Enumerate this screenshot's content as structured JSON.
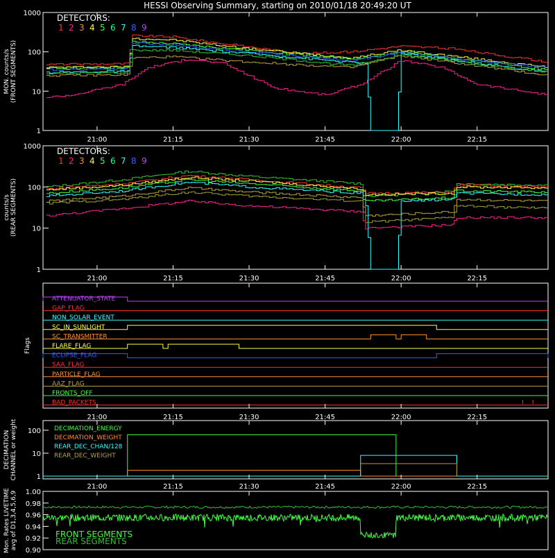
{
  "title": "HESSI Observing Summary, starting on 2010/01/18 20:49:20 UT",
  "colors": {
    "d1": "#ff3030",
    "d2": "#ff2090",
    "d3": "#ff9030",
    "d4": "#ffff40",
    "d5": "#40ff40",
    "d6": "#20ff90",
    "d7": "#30ffff",
    "d8": "#3060ff",
    "d9": "#c040ff",
    "olive": "#b8a040",
    "olive2": "#a0a030",
    "green2": "#30c030"
  },
  "chart_data": [
    {
      "type": "line",
      "panel": "front",
      "ylabel_lines": [
        "MON. counts/s",
        "(FRONT SEGMENTS)"
      ],
      "legend_title": "DETECTORS:",
      "legend_digits": [
        "1",
        "2",
        "3",
        "4",
        "5",
        "6",
        "7",
        "8",
        "9"
      ],
      "yscale": "log",
      "ylim": [
        1,
        1000
      ],
      "yticks": [
        "1",
        "10",
        "100",
        "1000"
      ],
      "xlim": [
        "20:49:20",
        "22:29:00"
      ],
      "xticks": [
        "21:00",
        "21:15",
        "21:30",
        "21:45",
        "22:00",
        "22:15"
      ],
      "series": [
        {
          "color_key": "d1",
          "points": [
            [
              "20:50",
              48
            ],
            [
              "21:06",
              50
            ],
            [
              "21:07",
              260
            ],
            [
              "21:15",
              240
            ],
            [
              "21:25",
              160
            ],
            [
              "21:40",
              90
            ],
            [
              "21:50",
              100
            ],
            [
              "22:00",
              140
            ],
            [
              "22:10",
              120
            ],
            [
              "22:29",
              55
            ]
          ]
        },
        {
          "color_key": "d4",
          "points": [
            [
              "20:50",
              40
            ],
            [
              "21:06",
              42
            ],
            [
              "21:07",
              220
            ],
            [
              "21:15",
              200
            ],
            [
              "21:30",
              120
            ],
            [
              "21:50",
              70
            ],
            [
              "22:00",
              110
            ],
            [
              "22:29",
              40
            ]
          ]
        },
        {
          "color_key": "d5",
          "points": [
            [
              "20:50",
              38
            ],
            [
              "21:06",
              40
            ],
            [
              "21:07",
              180
            ],
            [
              "21:15",
              160
            ],
            [
              "21:30",
              110
            ],
            [
              "21:50",
              65
            ],
            [
              "22:00",
              100
            ],
            [
              "22:29",
              35
            ]
          ]
        },
        {
          "color_key": "d8",
          "points": [
            [
              "20:50",
              35
            ],
            [
              "21:06",
              38
            ],
            [
              "21:07",
              170
            ],
            [
              "21:15",
              150
            ],
            [
              "21:30",
              100
            ],
            [
              "21:50",
              60
            ],
            [
              "22:00",
              95
            ],
            [
              "22:29",
              40
            ]
          ]
        },
        {
          "color_key": "d7",
          "points": [
            [
              "20:50",
              30
            ],
            [
              "21:06",
              32
            ],
            [
              "21:07",
              140
            ],
            [
              "21:15",
              130
            ],
            [
              "21:30",
              90
            ],
            [
              "21:53",
              50
            ],
            [
              "21:54",
              1
            ],
            [
              "21:59",
              1
            ],
            [
              "22:00",
              90
            ],
            [
              "22:29",
              30
            ]
          ]
        },
        {
          "color_key": "olive",
          "points": [
            [
              "20:50",
              25
            ],
            [
              "21:06",
              26
            ],
            [
              "21:07",
              70
            ],
            [
              "21:15",
              75
            ],
            [
              "21:30",
              55
            ],
            [
              "21:50",
              40
            ],
            [
              "22:00",
              80
            ],
            [
              "22:29",
              25
            ]
          ]
        },
        {
          "color_key": "green2",
          "points": [
            [
              "20:50",
              28
            ],
            [
              "21:06",
              30
            ],
            [
              "21:07",
              110
            ],
            [
              "21:15",
              110
            ],
            [
              "21:30",
              80
            ],
            [
              "21:50",
              45
            ],
            [
              "22:00",
              85
            ],
            [
              "22:29",
              30
            ]
          ]
        },
        {
          "color_key": "d2",
          "points": [
            [
              "20:50",
              7
            ],
            [
              "20:55",
              8
            ],
            [
              "21:05",
              15
            ],
            [
              "21:10",
              40
            ],
            [
              "21:18",
              65
            ],
            [
              "21:25",
              50
            ],
            [
              "21:35",
              12
            ],
            [
              "21:45",
              8
            ],
            [
              "21:52",
              15
            ],
            [
              "22:00",
              60
            ],
            [
              "22:08",
              40
            ],
            [
              "22:15",
              15
            ],
            [
              "22:29",
              8
            ]
          ]
        }
      ]
    },
    {
      "type": "line",
      "panel": "rear",
      "ylabel_lines": [
        "counts/s",
        "(REAR SEGMENTS)"
      ],
      "legend_title": "DETECTORS:",
      "legend_digits": [
        "1",
        "2",
        "3",
        "4",
        "5",
        "6",
        "7",
        "8",
        "9"
      ],
      "yscale": "log",
      "ylim": [
        1,
        1000
      ],
      "yticks": [
        "1",
        "10",
        "100",
        "1000"
      ],
      "xlim": [
        "20:49:20",
        "22:29:00"
      ],
      "xticks": [
        "21:00",
        "21:15",
        "21:30",
        "21:45",
        "22:00",
        "22:15"
      ],
      "series": [
        {
          "color_key": "green2",
          "points": [
            [
              "20:50",
              100
            ],
            [
              "21:05",
              150
            ],
            [
              "21:18",
              240
            ],
            [
              "21:30",
              180
            ],
            [
              "21:52",
              120
            ],
            [
              "21:53",
              60
            ],
            [
              "22:00",
              65
            ],
            [
              "22:10",
              80
            ],
            [
              "22:11",
              120
            ],
            [
              "22:29",
              110
            ]
          ]
        },
        {
          "color_key": "d1",
          "points": [
            [
              "20:50",
              90
            ],
            [
              "21:05",
              120
            ],
            [
              "21:18",
              190
            ],
            [
              "21:30",
              150
            ],
            [
              "21:52",
              95
            ],
            [
              "21:53",
              70
            ],
            [
              "22:10",
              75
            ],
            [
              "22:11",
              110
            ],
            [
              "22:29",
              100
            ]
          ]
        },
        {
          "color_key": "d4",
          "points": [
            [
              "20:50",
              85
            ],
            [
              "21:05",
              110
            ],
            [
              "21:18",
              170
            ],
            [
              "21:30",
              140
            ],
            [
              "21:52",
              90
            ],
            [
              "21:53",
              65
            ],
            [
              "22:10",
              70
            ],
            [
              "22:11",
              100
            ],
            [
              "22:29",
              95
            ]
          ]
        },
        {
          "color_key": "d5",
          "points": [
            [
              "20:50",
              70
            ],
            [
              "21:05",
              95
            ],
            [
              "21:18",
              150
            ],
            [
              "21:30",
              120
            ],
            [
              "21:52",
              80
            ],
            [
              "21:53",
              45
            ],
            [
              "22:10",
              55
            ],
            [
              "22:11",
              80
            ],
            [
              "22:29",
              75
            ]
          ]
        },
        {
          "color_key": "d7",
          "points": [
            [
              "20:50",
              60
            ],
            [
              "21:05",
              80
            ],
            [
              "21:18",
              130
            ],
            [
              "21:30",
              100
            ],
            [
              "21:52",
              70
            ],
            [
              "21:53",
              35
            ],
            [
              "21:54",
              1
            ],
            [
              "21:59",
              1
            ],
            [
              "22:00",
              45
            ],
            [
              "22:10",
              50
            ],
            [
              "22:11",
              70
            ],
            [
              "22:29",
              65
            ]
          ]
        },
        {
          "color_key": "olive",
          "points": [
            [
              "20:50",
              45
            ],
            [
              "21:05",
              60
            ],
            [
              "21:18",
              95
            ],
            [
              "21:30",
              75
            ],
            [
              "21:52",
              55
            ],
            [
              "21:53",
              20
            ],
            [
              "22:10",
              25
            ],
            [
              "22:11",
              50
            ],
            [
              "22:29",
              45
            ]
          ]
        },
        {
          "color_key": "olive2",
          "points": [
            [
              "20:50",
              40
            ],
            [
              "21:05",
              50
            ],
            [
              "21:18",
              75
            ],
            [
              "21:30",
              60
            ],
            [
              "21:52",
              45
            ],
            [
              "21:53",
              14
            ],
            [
              "22:10",
              18
            ],
            [
              "22:11",
              35
            ],
            [
              "22:29",
              30
            ]
          ]
        },
        {
          "color_key": "d2",
          "points": [
            [
              "20:50",
              20
            ],
            [
              "21:05",
              30
            ],
            [
              "21:18",
              45
            ],
            [
              "21:30",
              35
            ],
            [
              "21:52",
              25
            ],
            [
              "21:53",
              10
            ],
            [
              "22:10",
              12
            ],
            [
              "22:11",
              18
            ],
            [
              "22:29",
              18
            ]
          ]
        }
      ]
    }
  ],
  "flags_panel": {
    "ylabel": "Flags",
    "xticks": [
      "21:00",
      "21:15",
      "21:30",
      "21:45",
      "22:00",
      "22:15"
    ],
    "rows": [
      {
        "label": "ATTENUATOR_STATE",
        "color_key": "d9",
        "on": [
          [
            "20:49:20",
            "21:06"
          ]
        ]
      },
      {
        "label": "GAP_FLAG",
        "color_key": "d1",
        "on": []
      },
      {
        "label": "NON_SOLAR_EVENT",
        "color_key": "d7",
        "on": []
      },
      {
        "label": "SC_IN_SUNLIGHT",
        "color_key": "d4",
        "on": [
          [
            "21:06",
            "22:07"
          ]
        ]
      },
      {
        "label": "SC_TRANSMITTER",
        "color_key": "d3",
        "on": [
          [
            "21:54",
            "21:59"
          ],
          [
            "22:00",
            "22:05"
          ]
        ]
      },
      {
        "label": "FLARE_FLAG",
        "color_key": "d4",
        "on": [
          [
            "21:06",
            "21:13"
          ],
          [
            "21:14",
            "21:28"
          ]
        ]
      },
      {
        "label": "ECLIPSE_FLAG",
        "color_key": "d8",
        "on": [
          [
            "20:49:20",
            "21:06"
          ],
          [
            "22:07",
            "22:29"
          ]
        ]
      },
      {
        "label": "SAA_FLAG",
        "color_key": "d1",
        "on": []
      },
      {
        "label": "PARTICLE_FLAG",
        "color_key": "d3",
        "on": []
      },
      {
        "label": "AAZ_FLAG",
        "color_key": "olive",
        "on": []
      },
      {
        "label": "FRONTS_OFF",
        "color_key": "d5",
        "on": []
      },
      {
        "label": "BAD_PACKETS",
        "color_key": "d1",
        "on": []
      }
    ]
  },
  "decimation_panel": {
    "ylabel_lines": [
      "DECIMATION",
      "CHANNEL or weight"
    ],
    "yticks": [
      "1",
      "10",
      "100"
    ],
    "xticks": [
      "21:00",
      "21:15",
      "21:30",
      "21:45",
      "22:00",
      "22:15"
    ],
    "legend": [
      {
        "label": "DECIMATION_ENERGY",
        "color_key": "d5"
      },
      {
        "label": "DECIMATION_WEIGHT",
        "color_key": "d3"
      },
      {
        "label": "REAR_DEC_CHAN/128",
        "color_key": "d7"
      },
      {
        "label": "REAR_DEC_WEIGHT",
        "color_key": "olive"
      }
    ]
  },
  "livetime_panel": {
    "ylabel_lines": [
      "Mon. Rates LIVETIME",
      "avg of D1,3,4,5,6,9"
    ],
    "yticks": [
      "0.90",
      "0.92",
      "0.94",
      "0.96",
      "0.98",
      "1.00"
    ],
    "ylim": [
      0.9,
      1.0
    ],
    "legend": [
      {
        "label": "FRONT SEGMENTS",
        "color_key": "d5"
      },
      {
        "label": "REAR SEGMENTS",
        "color_key": "green2"
      }
    ]
  }
}
